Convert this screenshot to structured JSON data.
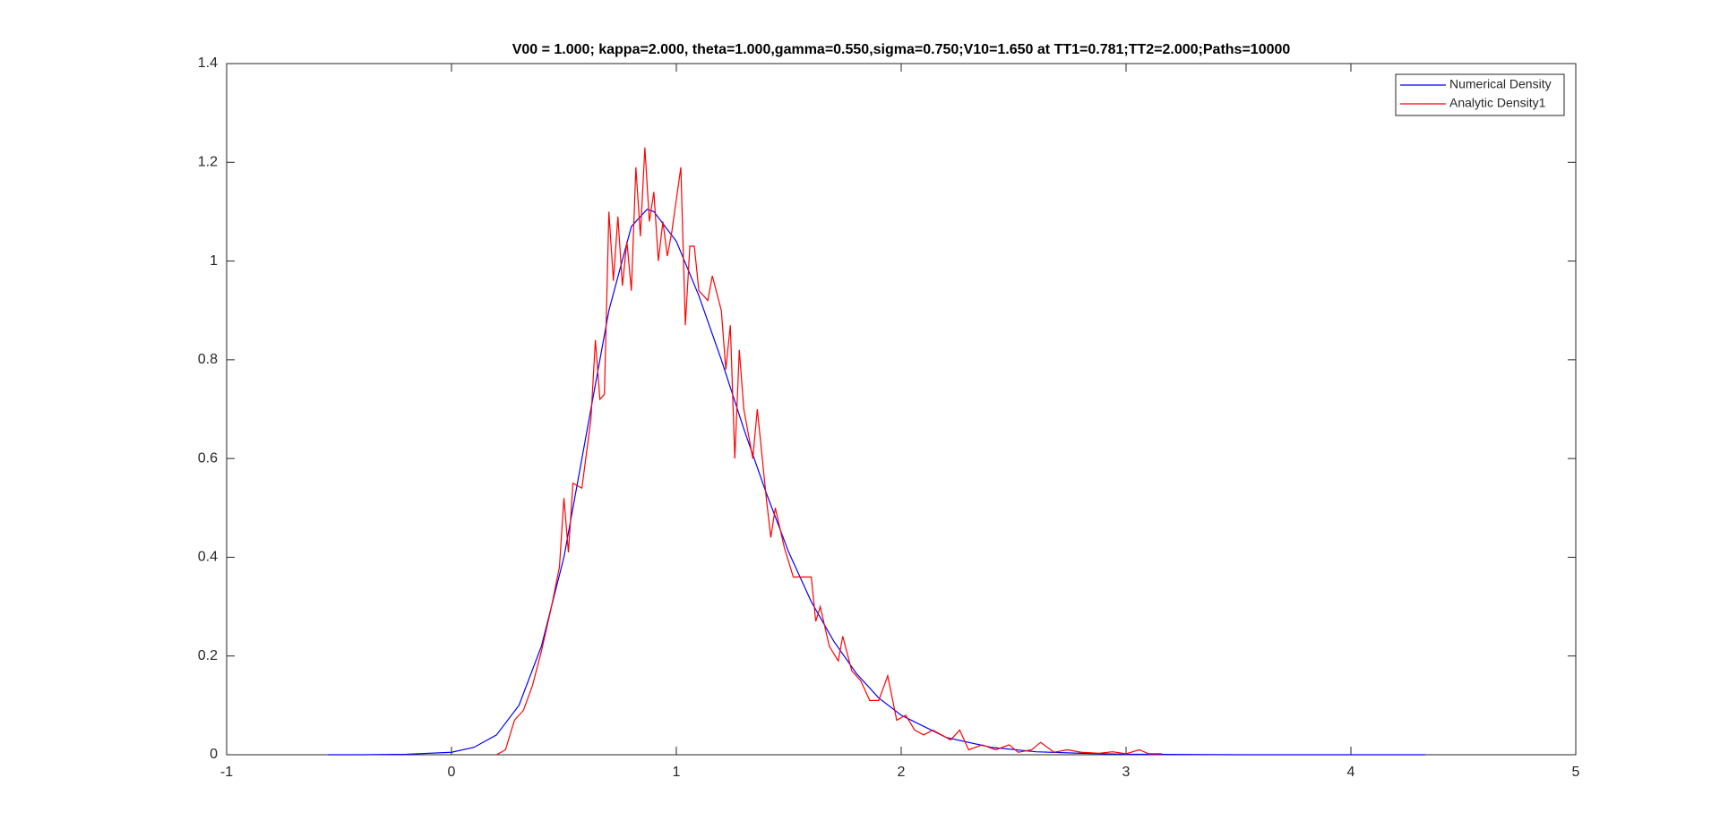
{
  "chart_data": {
    "type": "line",
    "title": "V00 = 1.000; kappa=2.000, theta=1.000,gamma=0.550,sigma=0.750;V10=1.650 at TT1=0.781;TT2=2.000;Paths=10000",
    "xlim": [
      -1,
      5
    ],
    "ylim": [
      0,
      1.4
    ],
    "xticks": [
      -1,
      0,
      1,
      2,
      3,
      4,
      5
    ],
    "yticks": [
      0,
      0.2,
      0.4,
      0.6,
      0.8,
      1,
      1.2,
      1.4
    ],
    "legend": "upper-right",
    "series": [
      {
        "name": "Numerical Density",
        "color": "#0000ff",
        "x": [
          -0.55,
          -0.4,
          -0.2,
          0,
          0.1,
          0.2,
          0.3,
          0.4,
          0.5,
          0.6,
          0.7,
          0.8,
          0.87,
          0.9,
          1.0,
          1.1,
          1.2,
          1.3,
          1.4,
          1.5,
          1.6,
          1.7,
          1.8,
          1.9,
          2.0,
          2.2,
          2.4,
          2.6,
          2.8,
          3.0,
          3.5,
          4.0,
          4.33
        ],
        "values": [
          0,
          0,
          0.001,
          0.005,
          0.015,
          0.04,
          0.1,
          0.22,
          0.4,
          0.65,
          0.9,
          1.07,
          1.105,
          1.1,
          1.04,
          0.93,
          0.8,
          0.66,
          0.53,
          0.41,
          0.31,
          0.23,
          0.165,
          0.115,
          0.08,
          0.035,
          0.015,
          0.006,
          0.003,
          0.001,
          0,
          0,
          0
        ]
      },
      {
        "name": "Analytic Density1",
        "color": "#ff0000",
        "x": [
          0.2,
          0.24,
          0.28,
          0.32,
          0.36,
          0.4,
          0.44,
          0.48,
          0.5,
          0.52,
          0.54,
          0.58,
          0.62,
          0.64,
          0.66,
          0.68,
          0.7,
          0.72,
          0.74,
          0.76,
          0.78,
          0.8,
          0.82,
          0.84,
          0.86,
          0.88,
          0.9,
          0.92,
          0.94,
          0.96,
          0.98,
          1.02,
          1.04,
          1.06,
          1.08,
          1.1,
          1.14,
          1.16,
          1.2,
          1.22,
          1.24,
          1.26,
          1.28,
          1.3,
          1.32,
          1.34,
          1.36,
          1.4,
          1.42,
          1.44,
          1.48,
          1.52,
          1.56,
          1.6,
          1.62,
          1.64,
          1.68,
          1.72,
          1.74,
          1.78,
          1.82,
          1.86,
          1.9,
          1.94,
          1.98,
          2.02,
          2.06,
          2.1,
          2.14,
          2.18,
          2.22,
          2.26,
          2.3,
          2.36,
          2.42,
          2.48,
          2.52,
          2.58,
          2.62,
          2.68,
          2.74,
          2.8,
          2.88,
          2.94,
          3.0,
          3.06,
          3.1,
          3.16
        ],
        "values": [
          0,
          0.01,
          0.07,
          0.09,
          0.14,
          0.21,
          0.29,
          0.38,
          0.52,
          0.41,
          0.55,
          0.54,
          0.68,
          0.84,
          0.72,
          0.73,
          1.1,
          0.96,
          1.09,
          0.95,
          1.04,
          0.94,
          1.19,
          1.05,
          1.23,
          1.08,
          1.14,
          1.0,
          1.08,
          1.01,
          1.06,
          1.19,
          0.87,
          1.03,
          1.03,
          0.94,
          0.92,
          0.97,
          0.9,
          0.78,
          0.87,
          0.6,
          0.82,
          0.7,
          0.65,
          0.6,
          0.7,
          0.52,
          0.44,
          0.5,
          0.42,
          0.36,
          0.36,
          0.36,
          0.27,
          0.3,
          0.22,
          0.19,
          0.24,
          0.17,
          0.15,
          0.11,
          0.11,
          0.16,
          0.07,
          0.08,
          0.05,
          0.04,
          0.05,
          0.04,
          0.03,
          0.05,
          0.01,
          0.02,
          0.01,
          0.02,
          0.005,
          0.01,
          0.025,
          0.005,
          0.01,
          0.005,
          0.003,
          0.006,
          0.002,
          0.01,
          0.002,
          0.002
        ]
      }
    ]
  }
}
